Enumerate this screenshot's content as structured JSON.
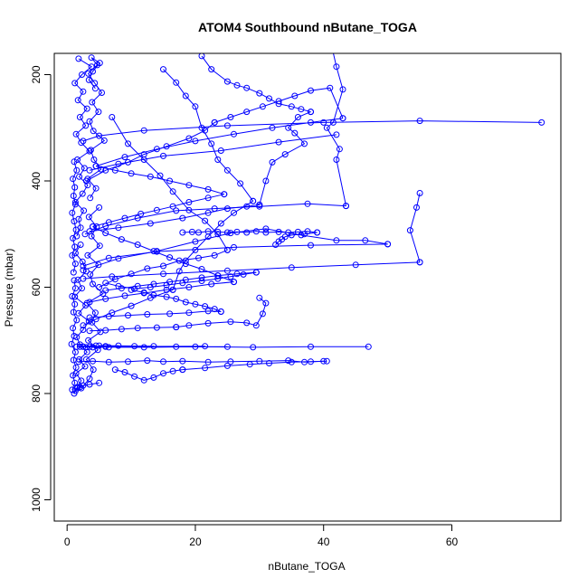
{
  "chart_data": {
    "type": "line",
    "title": "ATOM4 Southbound nButane_TOGA",
    "xlabel": "nButane_TOGA",
    "ylabel": "Pressure (mbar)",
    "xlim": [
      -2,
      77
    ],
    "ylim": [
      1040,
      160
    ],
    "y_reversed": true,
    "x_ticks": [
      0,
      20,
      40,
      60
    ],
    "y_ticks": [
      200,
      400,
      600,
      800,
      1000
    ],
    "grid": false,
    "color": "#0000FF",
    "marker": "open-circle",
    "series": [
      {
        "x": [
          1.1,
          1.6,
          2.2,
          1.4,
          2.8,
          1.9,
          3.1,
          2.0,
          1.5,
          2.5,
          3.4,
          1.8,
          2.9,
          1.2,
          2.3,
          1.7,
          3.0,
          2.4,
          1.3,
          2.1
        ],
        "y": [
          800,
          788,
          776,
          762,
          749,
          736,
          722,
          708,
          694,
          680,
          664,
          649,
          634,
          618,
          602,
          586,
          570,
          552,
          536,
          520
        ]
      },
      {
        "x": [
          1.5,
          2.1,
          1.8,
          2.6,
          1.3,
          2.4,
          3.2,
          1.9,
          2.7,
          1.6,
          3.5,
          2.2,
          1.4,
          2.9,
          2.0,
          3.1,
          1.7,
          2.5,
          1.2,
          2.3,
          3.8,
          1.8
        ],
        "y": [
          504,
          488,
          472,
          456,
          440,
          424,
          408,
          392,
          376,
          360,
          344,
          328,
          312,
          296,
          280,
          264,
          248,
          232,
          216,
          200,
          185,
          170
        ]
      },
      {
        "x": [
          2.2,
          3.5,
          4.1,
          3.0,
          4.8,
          3.3,
          5.2,
          3.9,
          4.4,
          3.1,
          5.6,
          4.0,
          3.6,
          4.9,
          3.2,
          5.1,
          3.8,
          4.6,
          3.4,
          5.0
        ],
        "y": [
          790,
          772,
          755,
          736,
          718,
          700,
          684,
          666,
          648,
          630,
          612,
          594,
          576,
          558,
          540,
          522,
          504,
          486,
          468,
          450
        ]
      },
      {
        "x": [
          3.6,
          4.5,
          3.2,
          5.3,
          4.2,
          3.7,
          5.8,
          4.1,
          3.5,
          4.9,
          3.9,
          5.4,
          4.3,
          3.3,
          4.7,
          3.8,
          5.1,
          4.0,
          3.4,
          4.4
        ],
        "y": [
          432,
          414,
          396,
          378,
          360,
          342,
          324,
          306,
          288,
          270,
          252,
          234,
          216,
          198,
          182,
          168,
          178,
          194,
          210,
          226
        ]
      },
      {
        "x": [
          0.8,
          1.2,
          0.9,
          1.4,
          1.0,
          1.3,
          0.7,
          1.1,
          0.9,
          1.5,
          1.0,
          1.2,
          0.8,
          1.3,
          1.1
        ],
        "y": [
          793,
          780,
          766,
          751,
          737,
          722,
          707,
          692,
          677,
          662,
          647,
          632,
          617,
          602,
          587
        ]
      },
      {
        "x": [
          1.0,
          1.3,
          0.8,
          1.2,
          0.9,
          1.4,
          1.1,
          0.8,
          1.3,
          1.0,
          1.2,
          0.9,
          1.5,
          1.1
        ],
        "y": [
          572,
          556,
          540,
          524,
          508,
          492,
          476,
          460,
          444,
          428,
          412,
          396,
          380,
          364
        ]
      },
      {
        "x": [
          2.0,
          4.5,
          1.5,
          6.0,
          3.0,
          8.0,
          2.5,
          10.5,
          4.0,
          13.5,
          5.0,
          17.0,
          3.5,
          21.5,
          6.5,
          25.0
        ],
        "y": [
          712,
          710,
          712,
          711,
          713,
          710,
          712,
          711,
          713,
          711,
          710,
          712,
          712,
          711,
          713,
          712
        ]
      },
      {
        "x": [
          1.8,
          4.0,
          6.5,
          9.5,
          12.5,
          15.0,
          18.0,
          22.0,
          25.5,
          30.0,
          34.5,
          37.0,
          40.0
        ],
        "y": [
          740,
          739,
          741,
          740,
          738,
          740,
          739,
          741,
          740,
          739,
          738,
          741,
          739
        ]
      },
      {
        "x": [
          47.0,
          38.0,
          29.0,
          20.0,
          12.0,
          6.0,
          2.5
        ],
        "y": [
          712,
          712,
          713,
          712,
          713,
          712,
          712
        ]
      },
      {
        "x": [
          2.5,
          8.0,
          14.0,
          20.0,
          25.5,
          31.0,
          36.5,
          42.0,
          46.5,
          50.0
        ],
        "y": [
          568,
          546,
          532,
          514,
          498,
          490,
          502,
          512,
          512,
          519
        ]
      },
      {
        "x": [
          50.0,
          38.0,
          26.0,
          14.0,
          6.5,
          2.5
        ],
        "y": [
          519,
          521,
          525,
          533,
          545,
          560
        ]
      },
      {
        "x": [
          55.0,
          54.5,
          53.5,
          55.0
        ],
        "y": [
          423,
          450,
          493,
          553
        ]
      },
      {
        "x": [
          55.0,
          45.0,
          35.0,
          25.0,
          15.0,
          7.0,
          2.5
        ],
        "y": [
          553,
          558,
          563,
          569,
          575,
          580,
          584
        ]
      },
      {
        "x": [
          40.0,
          42.0,
          43.0,
          41.5,
          40.5,
          42.5,
          42.0,
          43.5
        ],
        "y": [
          80,
          185,
          228,
          290,
          300,
          340,
          360,
          447
        ]
      },
      {
        "x": [
          43.5,
          37.5,
          30.0,
          23.0,
          17.0,
          11.0,
          6.0,
          2.8
        ],
        "y": [
          447,
          443,
          448,
          452,
          456,
          470,
          485,
          500
        ]
      },
      {
        "x": [
          74.0,
          55.0,
          40.0,
          25.0,
          12.0,
          5.0,
          2.5
        ],
        "y": [
          290,
          287,
          290,
          296,
          305,
          315,
          325
        ]
      },
      {
        "x": [
          42.0,
          33.0,
          24.0,
          15.0,
          8.0,
          3.5
        ],
        "y": [
          313,
          327,
          343,
          353,
          368,
          380
        ]
      },
      {
        "x": [
          21.0,
          22.5,
          25.0,
          26.5,
          28.0,
          30.0,
          31.5,
          33.0,
          35.0,
          36.5,
          38.0
        ],
        "y": [
          165,
          190,
          213,
          220,
          225,
          235,
          245,
          255,
          260,
          265,
          270
        ]
      },
      {
        "x": [
          38.0,
          36.0,
          34.5,
          35.5,
          37.0,
          34.0,
          32.0,
          31.0,
          30.0
        ],
        "y": [
          270,
          280,
          300,
          310,
          330,
          350,
          365,
          400,
          445
        ]
      },
      {
        "x": [
          30.0,
          28.0,
          25.0,
          22.0,
          18.0,
          13.0,
          8.0,
          3.5
        ],
        "y": [
          445,
          448,
          452,
          460,
          470,
          480,
          488,
          495
        ]
      },
      {
        "x": [
          15.0,
          17.0,
          18.5,
          20.0,
          21.0,
          22.5,
          23.5,
          25.0,
          27.0,
          29.0
        ],
        "y": [
          190,
          215,
          240,
          260,
          300,
          330,
          360,
          380,
          405,
          438
        ]
      },
      {
        "x": [
          29.0,
          26.0,
          24.0,
          22.0,
          20.0,
          18.5,
          17.5,
          16.5
        ],
        "y": [
          438,
          460,
          480,
          505,
          530,
          550,
          570,
          605
        ]
      },
      {
        "x": [
          16.5,
          13.0,
          10.0,
          7.0,
          4.5,
          2.5
        ],
        "y": [
          605,
          620,
          635,
          648,
          660,
          672
        ]
      },
      {
        "x": [
          30.0,
          31.0,
          30.5,
          29.5,
          28.0,
          25.5,
          22.0,
          19.0,
          17.0
        ],
        "y": [
          620,
          630,
          650,
          672,
          667,
          665,
          668,
          672,
          675
        ]
      },
      {
        "x": [
          17.0,
          14.0,
          11.0,
          8.5,
          6.0,
          3.5
        ],
        "y": [
          675,
          676,
          677,
          679,
          681,
          682
        ]
      },
      {
        "x": [
          18.0,
          19.5,
          20.5,
          22.0,
          23.5,
          25.0,
          26.5,
          28.0,
          29.5,
          31.0,
          33.0,
          34.5,
          36.0,
          37.5,
          39.0
        ],
        "y": [
          497,
          496,
          497,
          495,
          496,
          497,
          496,
          497,
          495,
          497,
          496,
          497,
          496,
          495,
          497
        ]
      },
      {
        "x": [
          39.0,
          37.0,
          35.0,
          34.0,
          33.5,
          33.0,
          32.5
        ],
        "y": [
          497,
          500,
          502,
          505,
          510,
          514,
          520
        ]
      },
      {
        "x": [
          10.0,
          12.0,
          13.5,
          15.5,
          17.0,
          18.5,
          20.0,
          21.5,
          23.0,
          24.0
        ],
        "y": [
          605,
          610,
          615,
          618,
          622,
          628,
          632,
          636,
          641,
          646
        ]
      },
      {
        "x": [
          24.0,
          22.0,
          19.0,
          16.0,
          12.5,
          9.5,
          6.5,
          3.5
        ],
        "y": [
          646,
          645,
          648,
          650,
          651,
          653,
          655,
          657
        ]
      },
      {
        "x": [
          6.0,
          8.0,
          10.5,
          13.0,
          15.5,
          18.0,
          21.0,
          23.5,
          25.5,
          27.5,
          29.5
        ],
        "y": [
          592,
          598,
          603,
          600,
          596,
          592,
          588,
          584,
          580,
          576,
          572
        ]
      },
      {
        "x": [
          29.5,
          26.5,
          23.5,
          21.0,
          18.5,
          16.0,
          13.5,
          11.0,
          8.5,
          6.0
        ],
        "y": [
          572,
          575,
          578,
          582,
          586,
          590,
          594,
          598,
          602,
          606
        ]
      },
      {
        "x": [
          7.0,
          9.5,
          12.0,
          14.5,
          16.5,
          19.0,
          21.5,
          23.5,
          25.0
        ],
        "y": [
          280,
          330,
          360,
          390,
          420,
          455,
          475,
          500,
          530
        ]
      },
      {
        "x": [
          25.0,
          23.0,
          20.5,
          17.5,
          15.0,
          12.5,
          10.0,
          7.5,
          5.0
        ],
        "y": [
          530,
          540,
          545,
          550,
          560,
          565,
          575,
          585,
          600
        ]
      },
      {
        "x": [
          7.5,
          9.0,
          10.5,
          12.0,
          13.5,
          15.0,
          16.5,
          18.0
        ],
        "y": [
          755,
          760,
          768,
          775,
          770,
          762,
          758,
          755
        ]
      },
      {
        "x": [
          18.0,
          21.5,
          25.0,
          28.5,
          31.5,
          35.0,
          38.0,
          40.5
        ],
        "y": [
          755,
          752,
          748,
          745,
          743,
          741,
          740,
          739
        ]
      },
      {
        "x": [
          5.0,
          3.5,
          2.5,
          2.0,
          1.6,
          1.3
        ],
        "y": [
          780,
          783,
          785,
          788,
          790,
          795
        ]
      },
      {
        "x": [
          3.0,
          6.0,
          9.5,
          12.0,
          15.5,
          19.0,
          21.5,
          23.0
        ],
        "y": [
          400,
          380,
          365,
          350,
          335,
          320,
          305,
          290
        ]
      },
      {
        "x": [
          23.0,
          25.5,
          28.0,
          30.5,
          33.0,
          35.5,
          38.0,
          41.0,
          43.0
        ],
        "y": [
          290,
          280,
          270,
          260,
          250,
          240,
          230,
          225,
          282
        ]
      },
      {
        "x": [
          43.0,
          38.0,
          32.0,
          26.0,
          20.0,
          14.0,
          9.0,
          4.5
        ],
        "y": [
          282,
          290,
          300,
          312,
          325,
          340,
          355,
          372
        ]
      },
      {
        "x": [
          4.5,
          7.5,
          10.0,
          13.0,
          16.0,
          19.0,
          22.0,
          24.5
        ],
        "y": [
          372,
          380,
          386,
          392,
          400,
          408,
          416,
          425
        ]
      },
      {
        "x": [
          24.5,
          22.0,
          19.0,
          16.5,
          14.0,
          11.5,
          9.0,
          6.5,
          4.0
        ],
        "y": [
          425,
          432,
          440,
          448,
          455,
          462,
          470,
          478,
          486
        ]
      },
      {
        "x": [
          4.0,
          6.0,
          8.5,
          11.0,
          13.5,
          16.0,
          18.5,
          21.0,
          23.5,
          26.0
        ],
        "y": [
          486,
          498,
          510,
          520,
          532,
          544,
          556,
          566,
          578,
          590
        ]
      },
      {
        "x": [
          26.0,
          22.5,
          19.0,
          15.5,
          12.0,
          9.0,
          6.0,
          3.5
        ],
        "y": [
          590,
          594,
          600,
          605,
          611,
          616,
          622,
          628
        ]
      }
    ]
  }
}
